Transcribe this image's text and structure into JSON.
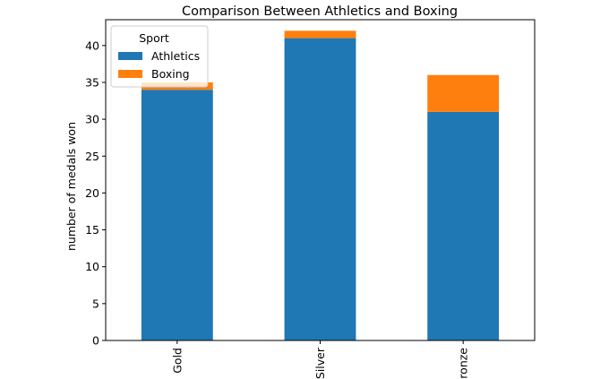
{
  "chart_data": {
    "type": "bar",
    "stacked": true,
    "title": "Comparison Between Athletics and Boxing",
    "xlabel": "",
    "ylabel": "number of medals won",
    "categories": [
      "Gold",
      "Silver",
      "Bronze"
    ],
    "series": [
      {
        "name": "Athletics",
        "values": [
          34,
          41,
          31
        ],
        "color": "#1f77b4"
      },
      {
        "name": "Boxing",
        "values": [
          1,
          1,
          5
        ],
        "color": "#ff7f0e"
      }
    ],
    "ylim": [
      0,
      43.5
    ],
    "yticks": [
      0,
      5,
      10,
      15,
      20,
      25,
      30,
      35,
      40
    ],
    "grid": false,
    "legend": {
      "title": "Sport",
      "placement": "top-left"
    }
  }
}
